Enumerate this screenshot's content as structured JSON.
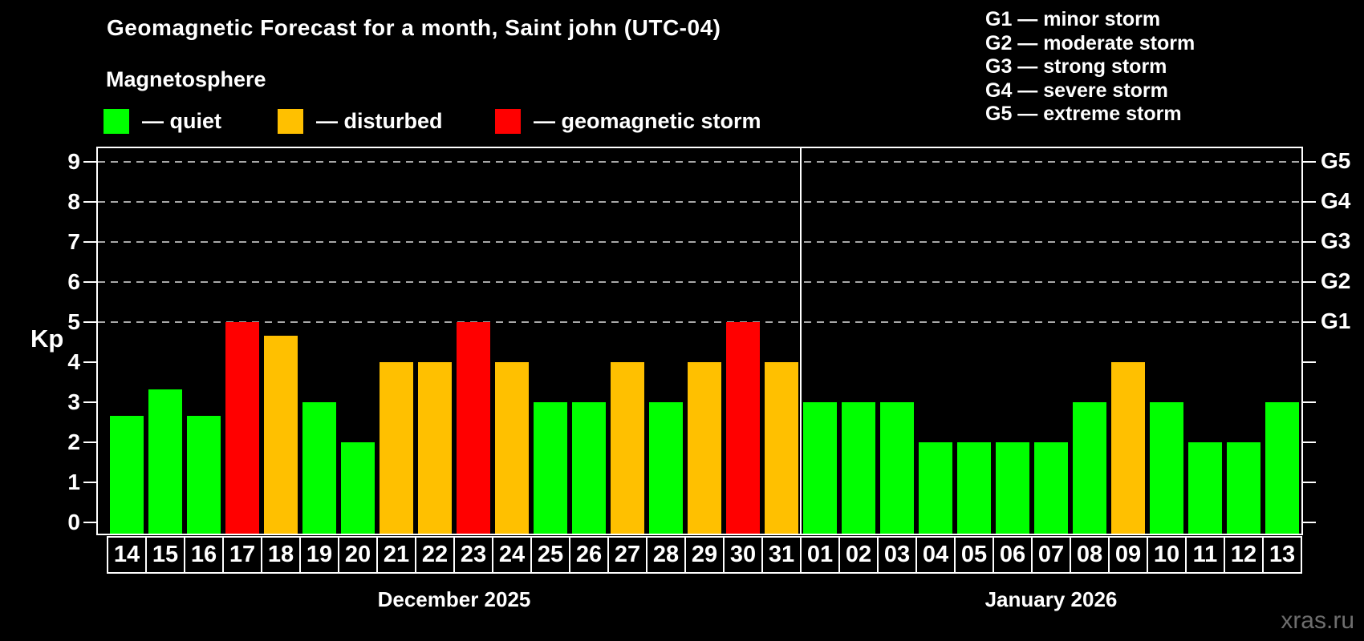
{
  "title": "Geomagnetic Forecast for a month, Saint john (UTC-04)",
  "subtitle": "Magnetosphere",
  "legend": {
    "quiet": "— quiet",
    "disturbed": "— disturbed",
    "storm": "— geomagnetic storm"
  },
  "storm_scale": [
    "G1 — minor storm",
    "G2 — moderate storm",
    "G3 — strong storm",
    "G4 — severe storm",
    "G5 — extreme storm"
  ],
  "watermark": "xras.ru",
  "colors": {
    "quiet": "#00ff00",
    "disturbed": "#ffc000",
    "storm": "#ff0000",
    "grid": "#a8a8a8",
    "axis": "#ffffff"
  },
  "chart_data": {
    "type": "bar",
    "title": "Geomagnetic Forecast for a month, Saint john (UTC-04)",
    "subtitle": "Magnetosphere",
    "ylabel": "Kp",
    "ylim": [
      0,
      9
    ],
    "yticks": [
      0,
      1,
      2,
      3,
      4,
      5,
      6,
      7,
      8,
      9
    ],
    "gridlines_at": [
      5,
      6,
      7,
      8,
      9
    ],
    "grid": "horizontal dashed at storm levels only",
    "legend_position": "top-left",
    "right_axis_labels": [
      {
        "kp": 5,
        "label": "G1"
      },
      {
        "kp": 6,
        "label": "G2"
      },
      {
        "kp": 7,
        "label": "G3"
      },
      {
        "kp": 8,
        "label": "G4"
      },
      {
        "kp": 9,
        "label": "G5"
      }
    ],
    "months": [
      {
        "label": "December 2025",
        "days": [
          "14",
          "15",
          "16",
          "17",
          "18",
          "19",
          "20",
          "21",
          "22",
          "23",
          "24",
          "25",
          "26",
          "27",
          "28",
          "29",
          "30",
          "31"
        ],
        "values": [
          2.67,
          3.33,
          2.67,
          5,
          4.67,
          3,
          2,
          4,
          4,
          5,
          4,
          3,
          3,
          4,
          3,
          4,
          5,
          4
        ],
        "status": [
          "quiet",
          "quiet",
          "quiet",
          "storm",
          "disturbed",
          "quiet",
          "quiet",
          "disturbed",
          "disturbed",
          "storm",
          "disturbed",
          "quiet",
          "quiet",
          "disturbed",
          "quiet",
          "disturbed",
          "storm",
          "disturbed"
        ]
      },
      {
        "label": "January 2026",
        "days": [
          "01",
          "02",
          "03",
          "04",
          "05",
          "06",
          "07",
          "08",
          "09",
          "10",
          "11",
          "12",
          "13"
        ],
        "values": [
          3,
          3,
          3,
          2,
          2,
          2,
          2,
          3,
          4,
          3,
          2,
          2,
          3
        ],
        "status": [
          "quiet",
          "quiet",
          "quiet",
          "quiet",
          "quiet",
          "quiet",
          "quiet",
          "quiet",
          "disturbed",
          "quiet",
          "quiet",
          "quiet",
          "quiet"
        ]
      }
    ]
  }
}
